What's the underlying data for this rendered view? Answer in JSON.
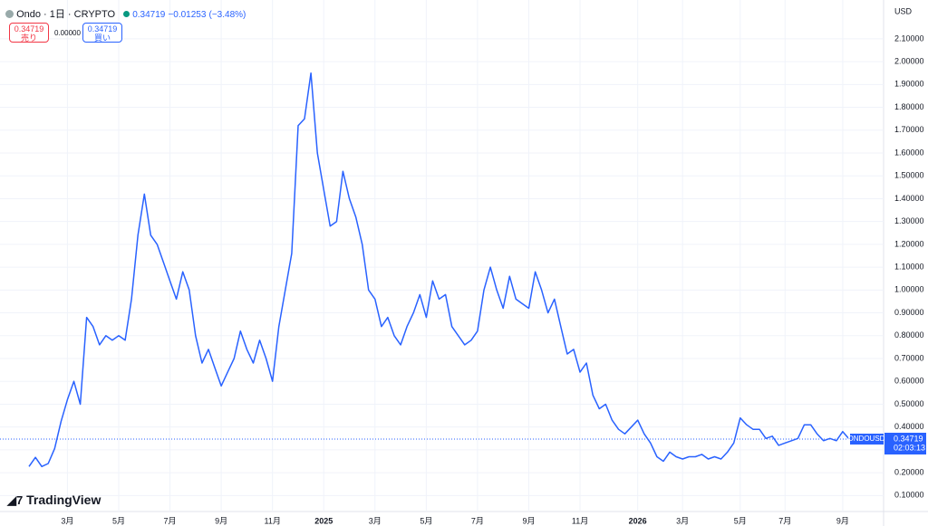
{
  "header": {
    "symbol": "Ondo · 1日 · CRYPTO",
    "price": "0.34719",
    "change": "−0.01253",
    "change_pct": "(−3.48%)"
  },
  "trade": {
    "sell_price": "0.34719",
    "sell_label": "売り",
    "spread": "0.00000",
    "buy_price": "0.34719",
    "buy_label": "買い"
  },
  "brand": "TradingView",
  "chart_data": {
    "type": "line",
    "currency": "USD",
    "categories": [
      null,
      null,
      null,
      null,
      null,
      null,
      "3月",
      null,
      null,
      null,
      null,
      null,
      null,
      null,
      "5月",
      null,
      null,
      null,
      null,
      null,
      null,
      null,
      "7月",
      null,
      null,
      null,
      null,
      null,
      null,
      null,
      "9月",
      null,
      null,
      null,
      null,
      null,
      null,
      null,
      "11月",
      null,
      null,
      null,
      null,
      null,
      null,
      null,
      "2025",
      null,
      null,
      null,
      null,
      null,
      null,
      null,
      "3月",
      null,
      null,
      null,
      null,
      null,
      null,
      null,
      "5月",
      null,
      null,
      null,
      null,
      null,
      null,
      null,
      "7月",
      null,
      null,
      null,
      null,
      null,
      null,
      null,
      "9月",
      null,
      null,
      null,
      null,
      null,
      null,
      null,
      "11月",
      null,
      null,
      null,
      null,
      null,
      null,
      null,
      null,
      "2026",
      null,
      null,
      null,
      null,
      null,
      null,
      "3月",
      null,
      null,
      null,
      null,
      null,
      null,
      null,
      null,
      "5月",
      null,
      null,
      null,
      null,
      null,
      null,
      "7月",
      null,
      null,
      null,
      null,
      null,
      null,
      null,
      null,
      "9月",
      null
    ],
    "series": [
      {
        "name": "ONDOUSD",
        "color": "#2962ff",
        "values": [
          0.227,
          0.267,
          0.227,
          0.24,
          0.306,
          0.425,
          0.52,
          0.6,
          0.5,
          0.88,
          0.84,
          0.76,
          0.8,
          0.78,
          0.8,
          0.78,
          0.96,
          1.24,
          1.42,
          1.24,
          1.2,
          1.12,
          1.04,
          0.96,
          1.08,
          1.0,
          0.8,
          0.68,
          0.74,
          0.66,
          0.58,
          0.64,
          0.7,
          0.82,
          0.74,
          0.68,
          0.78,
          0.7,
          0.6,
          0.84,
          1.0,
          1.16,
          1.72,
          1.75,
          1.95,
          1.6,
          1.44,
          1.28,
          1.3,
          1.52,
          1.4,
          1.32,
          1.2,
          1.0,
          0.96,
          0.84,
          0.88,
          0.8,
          0.76,
          0.84,
          0.9,
          0.98,
          0.88,
          1.04,
          0.96,
          0.98,
          0.84,
          0.8,
          0.76,
          0.78,
          0.82,
          1.0,
          1.1,
          1.0,
          0.92,
          1.06,
          0.96,
          0.94,
          0.92,
          1.08,
          1.0,
          0.9,
          0.96,
          0.84,
          0.72,
          0.74,
          0.64,
          0.68,
          0.54,
          0.48,
          0.5,
          0.43,
          0.39,
          0.37,
          0.4,
          0.43,
          0.37,
          0.33,
          0.27,
          0.25,
          0.29,
          0.27,
          0.26,
          0.27,
          0.27,
          0.28,
          0.26,
          0.27,
          0.26,
          0.29,
          0.33,
          0.44,
          0.41,
          0.39,
          0.39,
          0.35,
          0.36,
          0.32,
          0.33,
          0.34,
          0.35,
          0.41,
          0.41,
          0.37,
          0.34,
          0.35,
          0.34,
          0.38,
          0.34719
        ]
      }
    ],
    "last_price": {
      "symbol": "ONDOUSD",
      "value": 0.34719,
      "countdown": "02:03:13"
    },
    "ylim": [
      0.03,
      2.27
    ],
    "yticks": [
      {
        "value": 0.1,
        "label": "0.10000"
      },
      {
        "value": 0.2,
        "label": "0.20000"
      },
      {
        "value": 0.3,
        "label": "0.30000"
      },
      {
        "value": 0.4,
        "label": "0.40000"
      },
      {
        "value": 0.5,
        "label": "0.50000"
      },
      {
        "value": 0.6,
        "label": "0.60000"
      },
      {
        "value": 0.7,
        "label": "0.70000"
      },
      {
        "value": 0.8,
        "label": "0.80000"
      },
      {
        "value": 0.9,
        "label": "0.90000"
      },
      {
        "value": 1.0,
        "label": "1.00000"
      },
      {
        "value": 1.1,
        "label": "1.10000"
      },
      {
        "value": 1.2,
        "label": "1.20000"
      },
      {
        "value": 1.3,
        "label": "1.30000"
      },
      {
        "value": 1.4,
        "label": "1.40000"
      },
      {
        "value": 1.5,
        "label": "1.50000"
      },
      {
        "value": 1.6,
        "label": "1.60000"
      },
      {
        "value": 1.7,
        "label": "1.70000"
      },
      {
        "value": 1.8,
        "label": "1.80000"
      },
      {
        "value": 1.9,
        "label": "1.90000"
      },
      {
        "value": 2.0,
        "label": "2.00000"
      },
      {
        "value": 2.1,
        "label": "2.10000"
      }
    ],
    "grid": true
  }
}
